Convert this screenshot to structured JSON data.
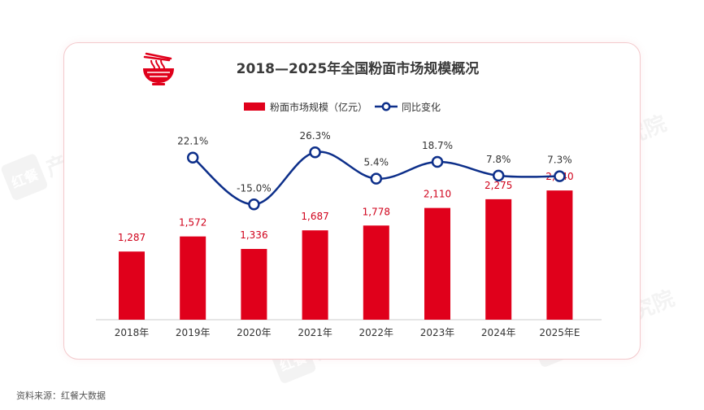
{
  "chart_data": {
    "type": "bar",
    "title": "2018—2025年全国粉面市场规模概况",
    "categories": [
      "2018年",
      "2019年",
      "2020年",
      "2021年",
      "2022年",
      "2023年",
      "2024年",
      "2025年E"
    ],
    "series": [
      {
        "name": "粉面市场规模（亿元）",
        "type": "bar",
        "values": [
          1287,
          1572,
          1336,
          1687,
          1778,
          2110,
          2275,
          2440
        ],
        "labels": [
          "1,287",
          "1,572",
          "1,336",
          "1,687",
          "1,778",
          "2,110",
          "2,275",
          "2,440"
        ],
        "color": "#e0001b"
      },
      {
        "name": "同比变化",
        "type": "line",
        "values": [
          null,
          22.1,
          -15.0,
          26.3,
          5.4,
          18.7,
          7.8,
          7.3
        ],
        "labels": [
          "",
          "22.1%",
          "-15.0%",
          "26.3%",
          "5.4%",
          "18.7%",
          "7.8%",
          "7.3%"
        ],
        "color": "#0d2f8a"
      }
    ],
    "legend_position": "top-center",
    "grid": false
  },
  "source": "资料来源：红餐大数据",
  "watermark": {
    "badge": "红餐",
    "text": "产业研究院"
  },
  "colors": {
    "bar": "#e0001b",
    "line": "#0d2f8a",
    "label_red": "#d0021b",
    "axis": "#cccccc"
  }
}
